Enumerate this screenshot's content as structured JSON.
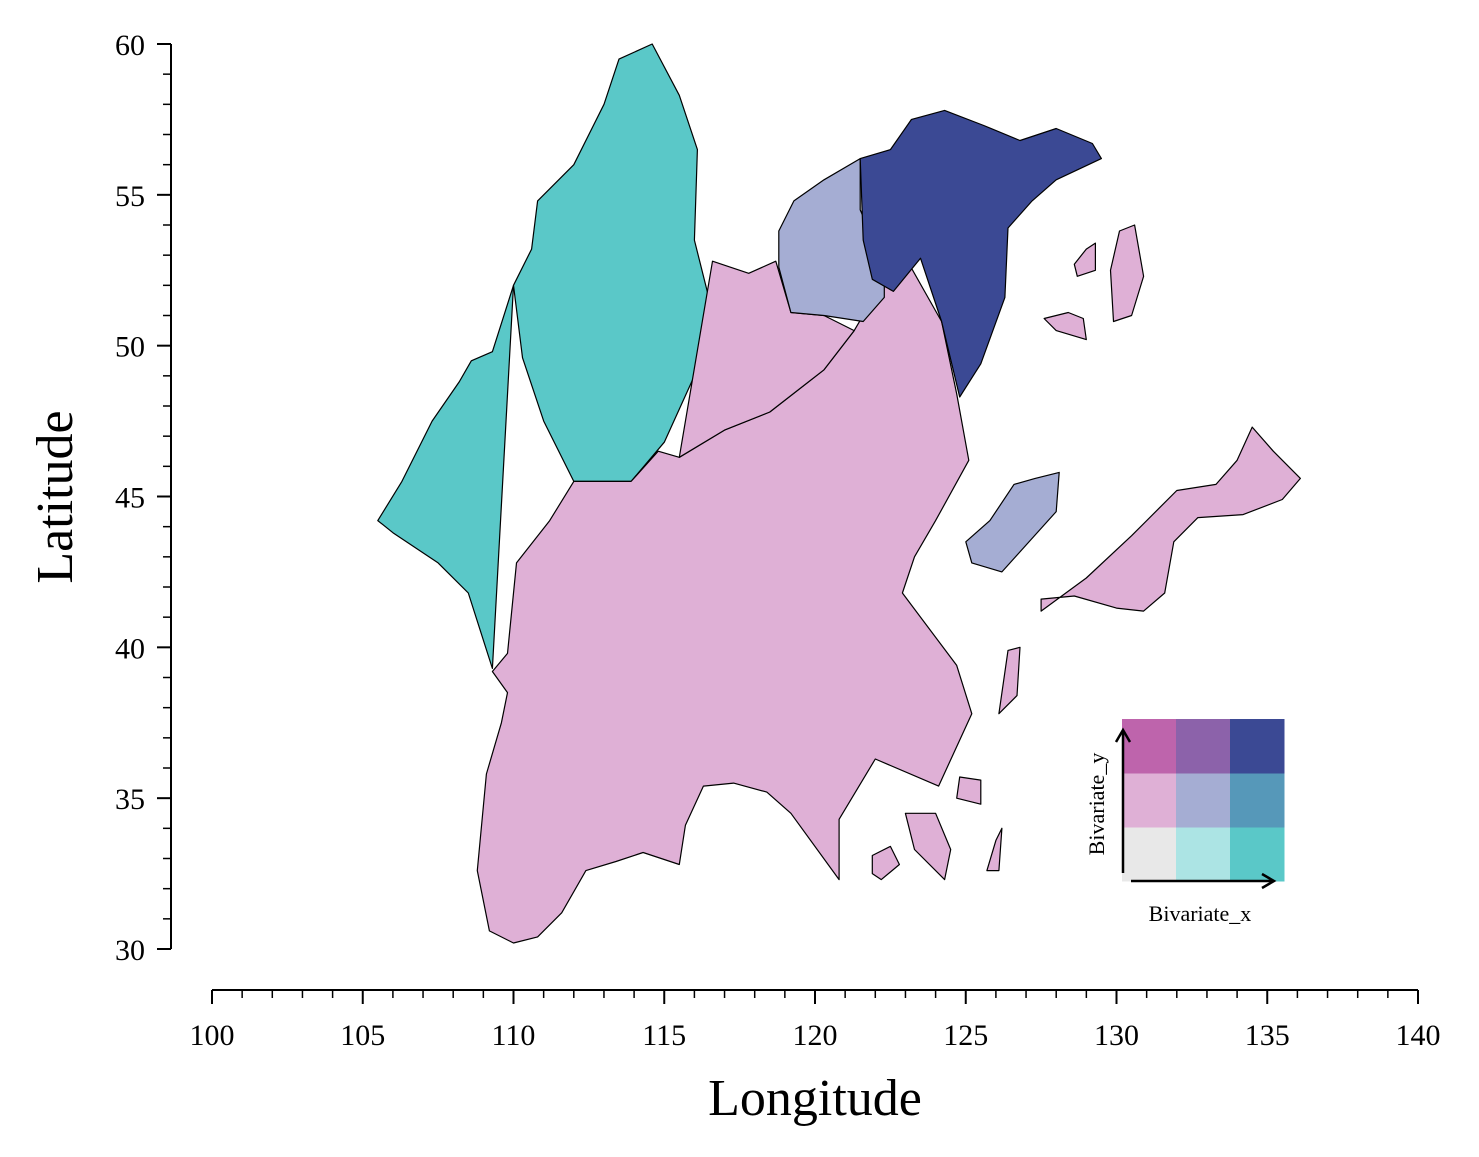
{
  "chart_data": {
    "type": "choropleth",
    "xlabel": "Longitude",
    "ylabel": "Latitude",
    "xlim": [
      100,
      140
    ],
    "ylim": [
      30,
      60
    ],
    "x_ticks": [
      100,
      105,
      110,
      115,
      120,
      125,
      130,
      135,
      140
    ],
    "y_ticks": [
      30,
      35,
      40,
      45,
      50,
      55,
      60
    ],
    "x_tick_labels": [
      "100",
      "105",
      "110",
      "115",
      "120",
      "125",
      "130",
      "135",
      "140"
    ],
    "y_tick_labels": [
      "30",
      "35",
      "40",
      "45",
      "50",
      "55",
      "60"
    ],
    "legend": {
      "type": "bivariate",
      "xlabel": "Bivariate_x",
      "ylabel": "Bivariate_y",
      "placement": "bottom-right",
      "grid": [
        [
          "#e8e8e8",
          "#ace4e4",
          "#5ac8c8"
        ],
        [
          "#dfb0d6",
          "#a5add3",
          "#5698b9"
        ],
        [
          "#be64ac",
          "#8c62aa",
          "#3b4994"
        ]
      ]
    },
    "regions": [
      {
        "id": "northwest-a",
        "class": [
          2,
          0
        ],
        "color": "#5ac8c8",
        "coords": [
          [
            109.3,
            39.3
          ],
          [
            108.5,
            41.8
          ],
          [
            107.5,
            42.8
          ],
          [
            106,
            43.8
          ],
          [
            105.5,
            44.2
          ],
          [
            106.3,
            45.5
          ],
          [
            107.3,
            47.5
          ],
          [
            108.2,
            48.8
          ],
          [
            108.6,
            49.5
          ],
          [
            109.3,
            49.8
          ],
          [
            110,
            52
          ]
        ]
      },
      {
        "id": "northwest-b",
        "class": [
          2,
          0
        ],
        "color": "#5ac8c8",
        "coords": [
          [
            110,
            52
          ],
          [
            110.6,
            53.2
          ],
          [
            110.8,
            54.8
          ],
          [
            112,
            56
          ],
          [
            113,
            58
          ],
          [
            113.5,
            59.5
          ],
          [
            114.6,
            60
          ],
          [
            115.5,
            58.3
          ],
          [
            116.1,
            56.5
          ],
          [
            116,
            53.5
          ],
          [
            116.5,
            51.5
          ],
          [
            116,
            49
          ],
          [
            115,
            46.8
          ],
          [
            113.9,
            45.5
          ],
          [
            112,
            45.5
          ],
          [
            111,
            47.5
          ],
          [
            110.3,
            49.6
          ]
        ]
      },
      {
        "id": "central",
        "class": [
          0,
          1
        ],
        "color": "#dfb0d6",
        "coords": [
          [
            109.3,
            39.2
          ],
          [
            109.8,
            39.8
          ],
          [
            110.1,
            42.8
          ],
          [
            111.2,
            44.2
          ],
          [
            112,
            45.5
          ],
          [
            113.9,
            45.5
          ],
          [
            114.8,
            46.5
          ],
          [
            115.5,
            46.3
          ],
          [
            117,
            47.2
          ],
          [
            118.5,
            47.8
          ],
          [
            120.3,
            49.2
          ],
          [
            121.3,
            50.5
          ],
          [
            122.3,
            52.2
          ],
          [
            122.9,
            53.1
          ],
          [
            124.2,
            50.8
          ],
          [
            124.7,
            48.4
          ],
          [
            125.1,
            46.2
          ],
          [
            124,
            44.2
          ],
          [
            123.3,
            43
          ],
          [
            122.9,
            41.8
          ],
          [
            124.7,
            39.4
          ],
          [
            125.2,
            37.8
          ],
          [
            124.1,
            35.4
          ],
          [
            122,
            36.3
          ],
          [
            120.8,
            34.3
          ],
          [
            120.8,
            32.3
          ],
          [
            119.2,
            34.5
          ],
          [
            118.4,
            35.2
          ],
          [
            117.3,
            35.5
          ],
          [
            116.3,
            35.4
          ],
          [
            115.7,
            34.1
          ],
          [
            115.5,
            32.8
          ],
          [
            114.3,
            33.2
          ],
          [
            113.4,
            32.9
          ],
          [
            112.4,
            32.6
          ],
          [
            111.6,
            31.2
          ],
          [
            110.8,
            30.4
          ],
          [
            110,
            30.2
          ],
          [
            109.2,
            30.6
          ],
          [
            108.8,
            32.6
          ],
          [
            109.1,
            35.8
          ],
          [
            109.6,
            37.5
          ],
          [
            109.8,
            38.5
          ]
        ]
      },
      {
        "id": "northeast-pink",
        "class": [
          0,
          1
        ],
        "color": "#dfb0d6",
        "coords": [
          [
            115.5,
            46.3
          ],
          [
            116.6,
            52.8
          ],
          [
            117.8,
            52.4
          ],
          [
            118.7,
            52.8
          ],
          [
            119.2,
            51.1
          ],
          [
            120.3,
            51
          ],
          [
            121.3,
            50.5
          ],
          [
            120.3,
            49.2
          ],
          [
            118.5,
            47.8
          ],
          [
            117,
            47.2
          ]
        ]
      },
      {
        "id": "northeast-lavender",
        "class": [
          1,
          1
        ],
        "color": "#a5add3",
        "coords": [
          [
            118.8,
            52.6
          ],
          [
            119.2,
            51.1
          ],
          [
            120.3,
            51
          ],
          [
            121.6,
            50.8
          ],
          [
            122.3,
            51.6
          ],
          [
            122.3,
            52.7
          ],
          [
            121.5,
            54.5
          ],
          [
            121.5,
            56.2
          ],
          [
            120.3,
            55.5
          ],
          [
            119.3,
            54.8
          ],
          [
            118.8,
            53.8
          ]
        ]
      },
      {
        "id": "far-northeast",
        "class": [
          2,
          2
        ],
        "color": "#3b4994",
        "coords": [
          [
            121.5,
            56.2
          ],
          [
            122.5,
            56.5
          ],
          [
            123.2,
            57.5
          ],
          [
            124.3,
            57.8
          ],
          [
            125.6,
            57.3
          ],
          [
            126.8,
            56.8
          ],
          [
            128,
            57.2
          ],
          [
            129.2,
            56.7
          ],
          [
            129.5,
            56.2
          ],
          [
            128,
            55.5
          ],
          [
            127.2,
            54.8
          ],
          [
            126.4,
            53.9
          ],
          [
            126.3,
            51.6
          ],
          [
            125.5,
            49.4
          ],
          [
            124.8,
            48.3
          ],
          [
            124.2,
            50.8
          ],
          [
            123.5,
            52.9
          ],
          [
            122.6,
            51.8
          ],
          [
            121.9,
            52.2
          ],
          [
            121.6,
            53.5
          ]
        ]
      },
      {
        "id": "island-lavender",
        "class": [
          1,
          1
        ],
        "color": "#a5add3",
        "coords": [
          [
            126.2,
            42.5
          ],
          [
            128,
            44.5
          ],
          [
            128.1,
            45.8
          ],
          [
            127.3,
            45.6
          ],
          [
            126.6,
            45.4
          ],
          [
            125.8,
            44.2
          ],
          [
            125,
            43.5
          ],
          [
            125.2,
            42.8
          ]
        ]
      },
      {
        "id": "island-east",
        "class": [
          0,
          1
        ],
        "color": "#dfb0d6",
        "coords": [
          [
            127.5,
            41.2
          ],
          [
            129,
            42.3
          ],
          [
            130.5,
            43.7
          ],
          [
            132,
            45.2
          ],
          [
            133.3,
            45.4
          ],
          [
            134,
            46.2
          ],
          [
            134.5,
            47.3
          ],
          [
            135.2,
            46.5
          ],
          [
            136.1,
            45.6
          ],
          [
            135.5,
            44.9
          ],
          [
            134.2,
            44.4
          ],
          [
            132.7,
            44.3
          ],
          [
            131.9,
            43.5
          ],
          [
            131.6,
            41.8
          ],
          [
            130.9,
            41.2
          ],
          [
            130,
            41.3
          ],
          [
            128.6,
            41.7
          ],
          [
            127.5,
            41.6
          ]
        ]
      },
      {
        "id": "island-small-1",
        "class": [
          0,
          1
        ],
        "color": "#dfb0d6",
        "coords": [
          [
            129,
            53.2
          ],
          [
            129.3,
            53.4
          ],
          [
            129.3,
            52.5
          ],
          [
            128.7,
            52.3
          ],
          [
            128.6,
            52.7
          ]
        ]
      },
      {
        "id": "island-small-2",
        "class": [
          0,
          1
        ],
        "color": "#dfb0d6",
        "coords": [
          [
            127.6,
            50.9
          ],
          [
            128.4,
            51.1
          ],
          [
            128.9,
            50.9
          ],
          [
            129,
            50.2
          ],
          [
            128,
            50.5
          ]
        ]
      },
      {
        "id": "island-north-east",
        "class": [
          0,
          1
        ],
        "color": "#dfb0d6",
        "coords": [
          [
            130.6,
            54
          ],
          [
            130.9,
            52.3
          ],
          [
            130.5,
            51
          ],
          [
            129.9,
            50.8
          ],
          [
            129.8,
            52.5
          ],
          [
            130.1,
            53.8
          ]
        ]
      },
      {
        "id": "island-small-3",
        "class": [
          0,
          1
        ],
        "color": "#dfb0d6",
        "coords": [
          [
            126.4,
            39.9
          ],
          [
            126.8,
            40
          ],
          [
            126.7,
            38.4
          ],
          [
            126.1,
            37.8
          ]
        ]
      },
      {
        "id": "island-small-4",
        "class": [
          0,
          1
        ],
        "color": "#dfb0d6",
        "coords": [
          [
            124.8,
            35.7
          ],
          [
            125.5,
            35.6
          ],
          [
            125.5,
            34.8
          ],
          [
            124.7,
            35
          ]
        ]
      },
      {
        "id": "island-small-5",
        "class": [
          0,
          1
        ],
        "color": "#dfb0d6",
        "coords": [
          [
            123,
            34.5
          ],
          [
            124,
            34.5
          ],
          [
            124.5,
            33.3
          ],
          [
            124.3,
            32.3
          ],
          [
            123.3,
            33.3
          ]
        ]
      },
      {
        "id": "island-small-6",
        "class": [
          0,
          1
        ],
        "color": "#dfb0d6",
        "coords": [
          [
            121.9,
            33.1
          ],
          [
            122.5,
            33.4
          ],
          [
            122.8,
            32.8
          ],
          [
            122.2,
            32.3
          ],
          [
            121.9,
            32.5
          ]
        ]
      },
      {
        "id": "island-small-7",
        "class": [
          0,
          1
        ],
        "color": "#dfb0d6",
        "coords": [
          [
            126,
            33.6
          ],
          [
            126.2,
            34
          ],
          [
            126.1,
            32.6
          ],
          [
            125.7,
            32.6
          ]
        ]
      }
    ]
  }
}
